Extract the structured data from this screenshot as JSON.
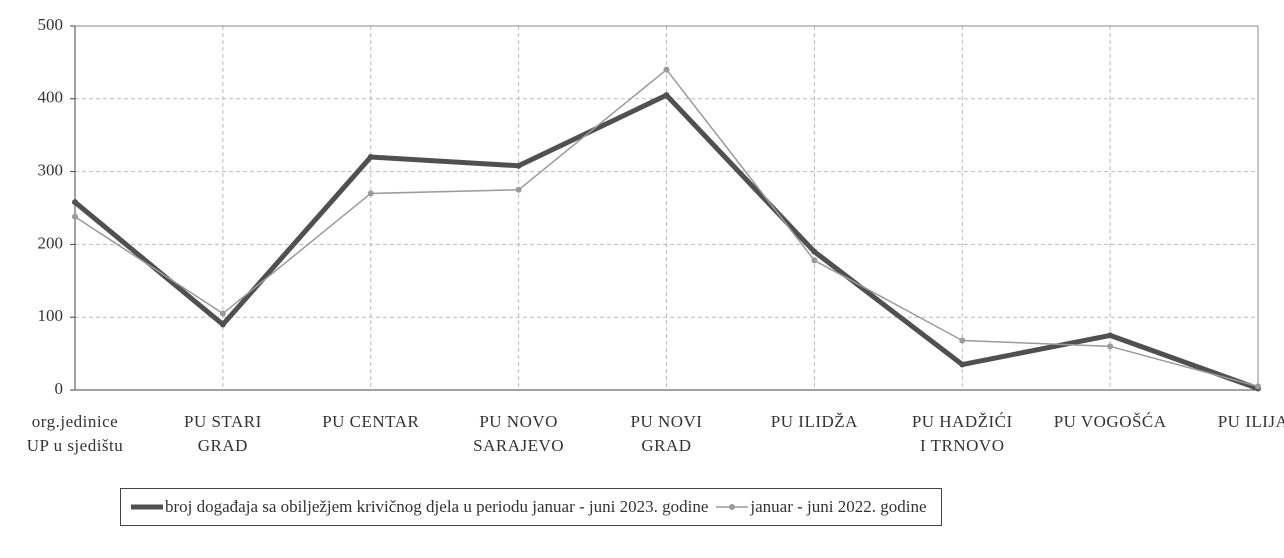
{
  "chart_data": {
    "type": "line",
    "categories": [
      "org.jedinice\nUP u sjedištu",
      "PU STARI\nGRAD",
      "PU CENTAR",
      "PU NOVO\nSARAJEVO",
      "PU NOVI\nGRAD",
      "PU ILIDŽA",
      "PU HADŽIĆI\nI TRNOVO",
      "PU VOGOŠĆA",
      "PU ILIJAŠ"
    ],
    "series": [
      {
        "name": "broj događaja sa obilježjem krivičnog djela u periodu januar - juni 2023. godine",
        "color": "#505050",
        "values": [
          258,
          90,
          320,
          308,
          405,
          190,
          35,
          75,
          2
        ]
      },
      {
        "name": "januar - juni 2022. godine",
        "color": "#9a9a9a",
        "values": [
          238,
          105,
          270,
          275,
          440,
          178,
          68,
          60,
          5
        ]
      }
    ],
    "ylim": [
      0,
      500
    ],
    "yticks": [
      0,
      100,
      200,
      300,
      400,
      500
    ],
    "grid": true
  }
}
